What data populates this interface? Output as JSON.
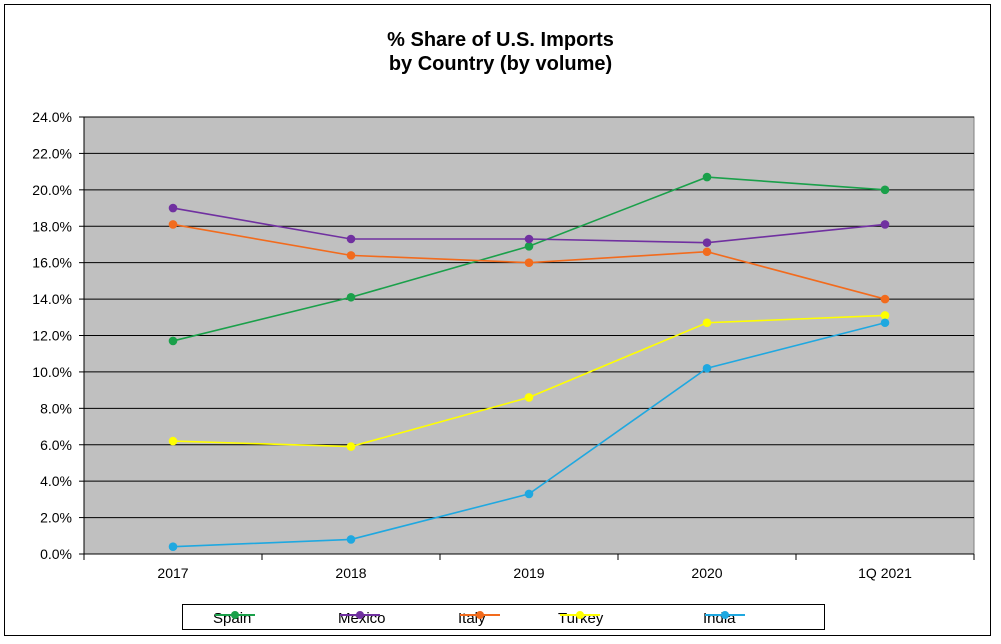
{
  "chart_data": {
    "type": "line",
    "title_line1": "% Share of U.S. Imports",
    "title_line2": "by Country (by volume)",
    "categories": [
      "2017",
      "2018",
      "2019",
      "2020",
      "1Q 2021"
    ],
    "ylim": [
      0,
      24
    ],
    "y_ticks": [
      "0.0%",
      "2.0%",
      "4.0%",
      "6.0%",
      "8.0%",
      "10.0%",
      "12.0%",
      "14.0%",
      "16.0%",
      "18.0%",
      "20.0%",
      "22.0%",
      "24.0%"
    ],
    "grid": true,
    "legend_position": "bottom",
    "plot_background": "#c0c0c0",
    "series": [
      {
        "name": "Spain",
        "color": "#1aa04a",
        "values": [
          11.7,
          14.1,
          16.9,
          20.7,
          20.0
        ]
      },
      {
        "name": "Mexico",
        "color": "#7030a0",
        "values": [
          19.0,
          17.3,
          17.3,
          17.1,
          18.1
        ]
      },
      {
        "name": "Italy",
        "color": "#f26b1d",
        "values": [
          18.1,
          16.4,
          16.0,
          16.6,
          14.0
        ]
      },
      {
        "name": "Turkey",
        "color": "#ffff00",
        "values": [
          6.2,
          5.9,
          8.6,
          12.7,
          13.1
        ]
      },
      {
        "name": "India",
        "color": "#1fa8e0",
        "values": [
          0.4,
          0.8,
          3.3,
          10.2,
          12.7
        ]
      }
    ]
  }
}
